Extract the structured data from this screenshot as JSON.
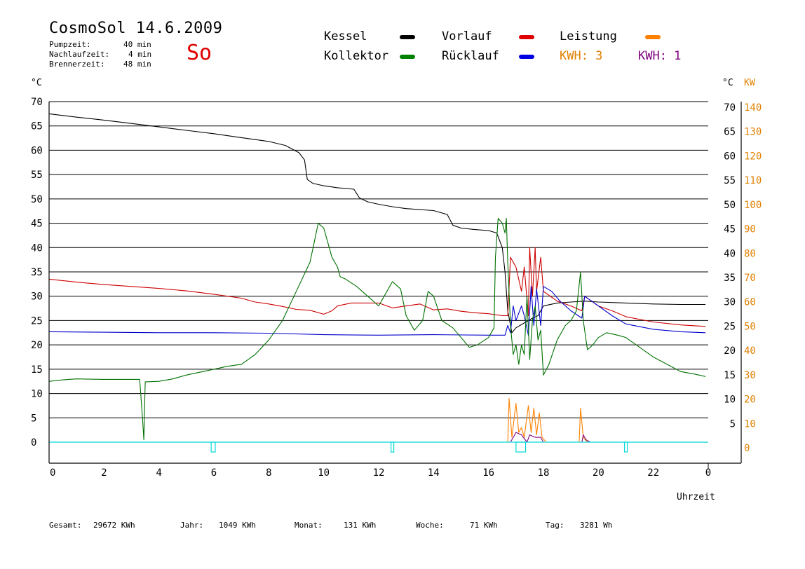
{
  "header": {
    "title": "CosmoSol 14.6.2009",
    "day": "So",
    "info": [
      {
        "label": "Pumpzeit:",
        "value": "40 min"
      },
      {
        "label": "Nachlaufzeit:",
        "value": "4 min"
      },
      {
        "label": "Brennerzeit:",
        "value": "48 min"
      }
    ]
  },
  "legend": {
    "kessel": {
      "label": "Kessel",
      "color": "#000000"
    },
    "kollektor": {
      "label": "Kollektor",
      "color": "#008000"
    },
    "vorlauf": {
      "label": "Vorlauf",
      "color": "#e00000"
    },
    "ruecklauf": {
      "label": "Rücklauf",
      "color": "#0000e0"
    },
    "leistung": {
      "label": "Leistung",
      "color": "#ff8000"
    },
    "kwh1": {
      "label": "KWH: 3",
      "color": "#e08000"
    },
    "kwh2": {
      "label": "KWH: 1",
      "color": "#800080"
    }
  },
  "units": {
    "left": "°C",
    "right_c": "°C",
    "right_kw": "KW"
  },
  "footer": [
    {
      "label": "Gesamt:",
      "value": "29672 KWh"
    },
    {
      "label": "Jahr:",
      "value": "1049 KWh"
    },
    {
      "label": "Monat:",
      "value": "131 KWh"
    },
    {
      "label": "Woche:",
      "value": "71 KWh"
    },
    {
      "label": "Tag:",
      "value": "3281 Wh"
    }
  ],
  "chart_data": {
    "type": "line",
    "xlabel": "Uhrzeit",
    "ylabel": "°C",
    "ylabel_right": "KW",
    "xlim": [
      0,
      24
    ],
    "ylim": [
      0,
      70
    ],
    "ylim_right_kw": [
      0,
      140
    ],
    "grid": true,
    "x_ticks": [
      "0",
      "2",
      "4",
      "6",
      "8",
      "10",
      "12",
      "14",
      "16",
      "18",
      "20",
      "22",
      "0"
    ],
    "y_ticks_left": [
      "0",
      "5",
      "10",
      "15",
      "20",
      "25",
      "30",
      "35",
      "40",
      "45",
      "50",
      "55",
      "60",
      "65",
      "70"
    ],
    "y_ticks_right_c": [
      "5",
      "10",
      "15",
      "20",
      "25",
      "30",
      "35",
      "40",
      "45",
      "50",
      "55",
      "60",
      "65",
      "70"
    ],
    "y_ticks_right_kw": [
      "0",
      "10",
      "20",
      "30",
      "40",
      "50",
      "60",
      "70",
      "80",
      "90",
      "100",
      "110",
      "120",
      "130",
      "140"
    ],
    "series": [
      {
        "name": "Kessel",
        "color": "#000000",
        "points": [
          [
            0,
            67.5
          ],
          [
            1,
            66.8
          ],
          [
            2,
            66.2
          ],
          [
            3,
            65.5
          ],
          [
            4,
            64.8
          ],
          [
            5,
            64.1
          ],
          [
            6,
            63.4
          ],
          [
            7,
            62.6
          ],
          [
            8,
            61.8
          ],
          [
            8.6,
            61.0
          ],
          [
            9.1,
            59.5
          ],
          [
            9.3,
            58
          ],
          [
            9.4,
            54
          ],
          [
            9.6,
            53.2
          ],
          [
            10,
            52.7
          ],
          [
            10.5,
            52.3
          ],
          [
            11.1,
            52
          ],
          [
            11.3,
            50.2
          ],
          [
            11.6,
            49.4
          ],
          [
            12,
            48.9
          ],
          [
            12.5,
            48.4
          ],
          [
            13,
            48
          ],
          [
            14,
            47.6
          ],
          [
            14.5,
            46.8
          ],
          [
            14.7,
            44.6
          ],
          [
            15,
            44
          ],
          [
            15.5,
            43.7
          ],
          [
            16,
            43.5
          ],
          [
            16.3,
            43
          ],
          [
            16.5,
            40
          ],
          [
            16.6,
            35
          ],
          [
            16.7,
            27
          ],
          [
            16.85,
            22.5
          ],
          [
            17,
            23.5
          ],
          [
            17.3,
            24.5
          ],
          [
            17.6,
            25.5
          ],
          [
            17.8,
            26
          ],
          [
            18,
            28
          ],
          [
            18.5,
            28.6
          ],
          [
            19,
            28.8
          ],
          [
            19.5,
            29
          ],
          [
            20,
            28.8
          ],
          [
            21,
            28.6
          ],
          [
            22,
            28.4
          ],
          [
            23,
            28.3
          ],
          [
            23.9,
            28.3
          ]
        ]
      },
      {
        "name": "Vorlauf",
        "color": "#cc0000",
        "points": [
          [
            0,
            33.5
          ],
          [
            1,
            32.9
          ],
          [
            2,
            32.4
          ],
          [
            3,
            32
          ],
          [
            4,
            31.6
          ],
          [
            5,
            31.1
          ],
          [
            6,
            30.4
          ],
          [
            7,
            29.6
          ],
          [
            7.5,
            28.8
          ],
          [
            8,
            28.4
          ],
          [
            8.5,
            27.9
          ],
          [
            9,
            27.3
          ],
          [
            9.5,
            27.1
          ],
          [
            10,
            26.3
          ],
          [
            10.3,
            27
          ],
          [
            10.5,
            28
          ],
          [
            11,
            28.6
          ],
          [
            12,
            28.6
          ],
          [
            12.5,
            27.6
          ],
          [
            13,
            28
          ],
          [
            13.5,
            28.4
          ],
          [
            14,
            27.2
          ],
          [
            14.5,
            27.4
          ],
          [
            15,
            26.9
          ],
          [
            15.5,
            26.6
          ],
          [
            16,
            26.4
          ],
          [
            16.5,
            26
          ],
          [
            16.7,
            26
          ],
          [
            16.8,
            38
          ],
          [
            17,
            36
          ],
          [
            17.2,
            31
          ],
          [
            17.3,
            36
          ],
          [
            17.45,
            26
          ],
          [
            17.5,
            40
          ],
          [
            17.6,
            30
          ],
          [
            17.7,
            40
          ],
          [
            17.75,
            31
          ],
          [
            17.9,
            38
          ],
          [
            18,
            31
          ],
          [
            18.5,
            29
          ],
          [
            19,
            28
          ],
          [
            19.4,
            27
          ],
          [
            19.5,
            30
          ],
          [
            20,
            28
          ],
          [
            20.5,
            27
          ],
          [
            21,
            25.8
          ],
          [
            22,
            24.7
          ],
          [
            23,
            24.1
          ],
          [
            23.9,
            23.8
          ]
        ]
      },
      {
        "name": "Rücklauf",
        "color": "#0000cc",
        "points": [
          [
            0,
            22.7
          ],
          [
            2,
            22.6
          ],
          [
            4,
            22.5
          ],
          [
            6,
            22.5
          ],
          [
            8,
            22.4
          ],
          [
            10,
            22.1
          ],
          [
            12,
            22
          ],
          [
            14,
            22.1
          ],
          [
            16,
            22
          ],
          [
            16.6,
            22
          ],
          [
            16.7,
            24
          ],
          [
            16.8,
            22.5
          ],
          [
            16.9,
            28
          ],
          [
            17,
            25
          ],
          [
            17.2,
            28
          ],
          [
            17.3,
            26
          ],
          [
            17.45,
            22
          ],
          [
            17.55,
            32
          ],
          [
            17.65,
            24
          ],
          [
            17.75,
            31.5
          ],
          [
            17.9,
            24
          ],
          [
            18,
            32
          ],
          [
            18.3,
            31
          ],
          [
            18.6,
            29
          ],
          [
            19,
            27
          ],
          [
            19.4,
            25.5
          ],
          [
            19.5,
            30
          ],
          [
            20,
            28
          ],
          [
            20.5,
            26
          ],
          [
            21,
            24.3
          ],
          [
            22,
            23.2
          ],
          [
            23,
            22.7
          ],
          [
            23.9,
            22.5
          ]
        ]
      },
      {
        "name": "Kollektor",
        "color": "#007000",
        "points": [
          [
            0,
            12.5
          ],
          [
            0.5,
            12.8
          ],
          [
            1,
            13
          ],
          [
            2,
            12.9
          ],
          [
            3,
            12.9
          ],
          [
            3.3,
            12.9
          ],
          [
            3.4,
            5
          ],
          [
            3.45,
            0.5
          ],
          [
            3.5,
            12.4
          ],
          [
            4,
            12.5
          ],
          [
            4.5,
            13
          ],
          [
            5,
            13.8
          ],
          [
            6,
            15
          ],
          [
            6.5,
            15.6
          ],
          [
            7,
            16
          ],
          [
            7.5,
            18
          ],
          [
            8,
            21
          ],
          [
            8.5,
            25
          ],
          [
            9,
            31
          ],
          [
            9.5,
            37
          ],
          [
            9.8,
            45
          ],
          [
            10,
            44
          ],
          [
            10.3,
            38
          ],
          [
            10.5,
            36
          ],
          [
            10.6,
            34
          ],
          [
            10.8,
            33.5
          ],
          [
            11.2,
            32
          ],
          [
            11.6,
            30
          ],
          [
            12,
            28
          ],
          [
            12.3,
            31
          ],
          [
            12.5,
            33
          ],
          [
            12.8,
            31.5
          ],
          [
            13,
            26
          ],
          [
            13.3,
            23
          ],
          [
            13.6,
            25
          ],
          [
            13.8,
            31
          ],
          [
            14,
            30
          ],
          [
            14.3,
            25
          ],
          [
            14.7,
            23.5
          ],
          [
            15,
            21.5
          ],
          [
            15.3,
            19.5
          ],
          [
            15.6,
            20
          ],
          [
            16,
            21.5
          ],
          [
            16.2,
            23.5
          ],
          [
            16.25,
            38
          ],
          [
            16.35,
            46
          ],
          [
            16.5,
            45
          ],
          [
            16.6,
            43
          ],
          [
            16.65,
            46
          ],
          [
            16.7,
            37
          ],
          [
            16.8,
            24
          ],
          [
            16.9,
            18
          ],
          [
            17,
            20
          ],
          [
            17.1,
            16
          ],
          [
            17.2,
            20
          ],
          [
            17.3,
            18
          ],
          [
            17.4,
            30
          ],
          [
            17.5,
            17
          ],
          [
            17.6,
            25
          ],
          [
            17.7,
            28
          ],
          [
            17.8,
            21
          ],
          [
            17.9,
            23
          ],
          [
            18,
            13.8
          ],
          [
            18.2,
            16
          ],
          [
            18.5,
            21
          ],
          [
            18.8,
            24
          ],
          [
            19,
            25
          ],
          [
            19.2,
            27
          ],
          [
            19.35,
            35
          ],
          [
            19.45,
            25
          ],
          [
            19.6,
            19
          ],
          [
            19.8,
            20
          ],
          [
            20,
            21.5
          ],
          [
            20.3,
            22.5
          ],
          [
            20.7,
            22
          ],
          [
            21,
            21.5
          ],
          [
            21.5,
            19.5
          ],
          [
            22,
            17.5
          ],
          [
            22.5,
            16
          ],
          [
            23,
            14.5
          ],
          [
            23.5,
            14
          ],
          [
            23.9,
            13.5
          ]
        ]
      },
      {
        "name": "Leistung",
        "color": "#ff8000",
        "axis": "kw",
        "points": [
          [
            0,
            0
          ],
          [
            16.7,
            0
          ],
          [
            16.75,
            18
          ],
          [
            16.85,
            2
          ],
          [
            17.0,
            16
          ],
          [
            17.1,
            4
          ],
          [
            17.2,
            6
          ],
          [
            17.3,
            2
          ],
          [
            17.45,
            15
          ],
          [
            17.55,
            4
          ],
          [
            17.65,
            14
          ],
          [
            17.75,
            3
          ],
          [
            17.85,
            12
          ],
          [
            17.95,
            2
          ],
          [
            18.1,
            0
          ],
          [
            19.3,
            0
          ],
          [
            19.35,
            14
          ],
          [
            19.45,
            2
          ],
          [
            19.6,
            0
          ],
          [
            24,
            0
          ]
        ]
      },
      {
        "name": "KWH",
        "color": "#800080",
        "axis": "kw",
        "points": [
          [
            0,
            0
          ],
          [
            16.8,
            0
          ],
          [
            17.0,
            4
          ],
          [
            17.2,
            3
          ],
          [
            17.4,
            0
          ],
          [
            17.5,
            3
          ],
          [
            17.7,
            2
          ],
          [
            17.9,
            2
          ],
          [
            18.0,
            0
          ],
          [
            19.4,
            0
          ],
          [
            19.45,
            3
          ],
          [
            19.55,
            1
          ],
          [
            19.7,
            0
          ],
          [
            24,
            0
          ]
        ]
      },
      {
        "name": "Pumpe",
        "color": "#00d8d8",
        "points": [
          [
            0,
            0
          ],
          [
            24,
            0
          ]
        ]
      }
    ]
  }
}
